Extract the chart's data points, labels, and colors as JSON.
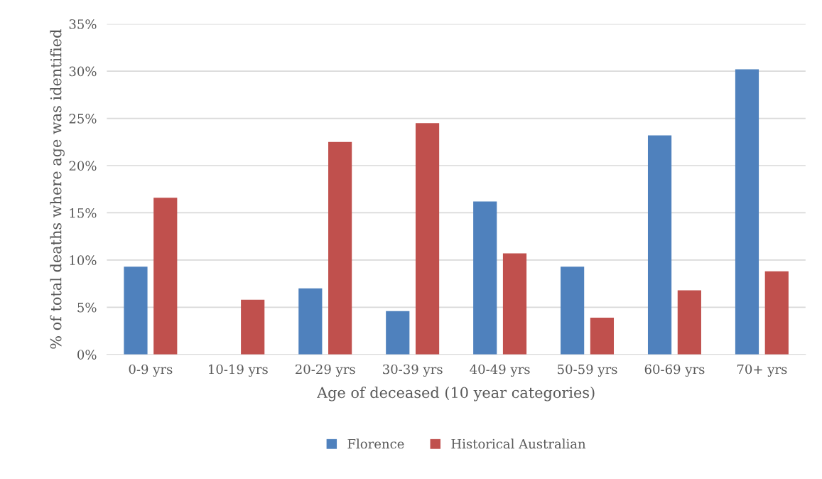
{
  "chart_data": {
    "type": "bar",
    "xlabel": "Age of deceased (10 year categories)",
    "ylabel": "% of total deaths where age was identified",
    "categories": [
      "0-9 yrs",
      "10-19 yrs",
      "20-29 yrs",
      "30-39 yrs",
      "40-49 yrs",
      "50-59 yrs",
      "60-69 yrs",
      "70+ yrs"
    ],
    "series": [
      {
        "name": "Florence",
        "color": "#4f81bd",
        "values": [
          9.3,
          0,
          7.0,
          4.6,
          16.2,
          9.3,
          23.2,
          30.2
        ]
      },
      {
        "name": "Historical Australian",
        "color": "#c0504d",
        "values": [
          16.6,
          5.8,
          22.5,
          24.5,
          10.7,
          3.9,
          6.8,
          8.8
        ]
      }
    ],
    "ylim": [
      0,
      35
    ],
    "yticks": [
      {
        "value": 0,
        "label": "0%"
      },
      {
        "value": 5,
        "label": "5%"
      },
      {
        "value": 10,
        "label": "10%"
      },
      {
        "value": 15,
        "label": "15%"
      },
      {
        "value": 20,
        "label": "20%"
      },
      {
        "value": 25,
        "label": "25%"
      },
      {
        "value": 30,
        "label": "30%"
      },
      {
        "value": 35,
        "label": "35%"
      }
    ],
    "grid": "y",
    "legend": "bottom"
  }
}
